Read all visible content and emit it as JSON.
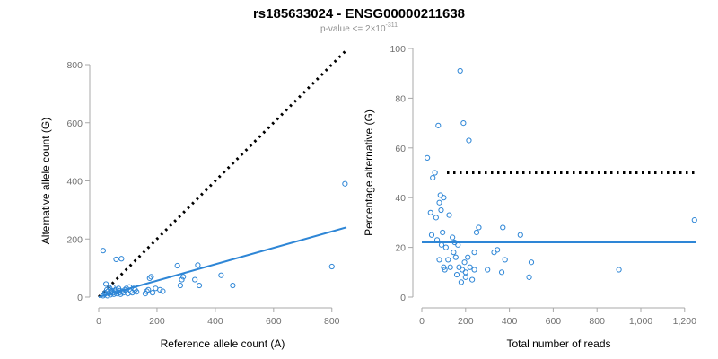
{
  "title": "rs185633024 - ENSG00000211638",
  "subtitle": {
    "base": "p-value <= 2×10",
    "exponent": "-311"
  },
  "colors": {
    "points": "#2e86d6",
    "fit_line": "#2e86d6",
    "reference_line": "#000000",
    "axis": "#a8a8a8",
    "tick_text": "#707070"
  },
  "chart_data": [
    {
      "type": "scatter",
      "xlabel": "Reference allele count (A)",
      "ylabel": "Alternative allele count (G)",
      "xlim": [
        0,
        850
      ],
      "ylim": [
        0,
        800
      ],
      "xticks": [
        0,
        200,
        400,
        600,
        800
      ],
      "yticks": [
        0,
        200,
        400,
        600,
        800
      ],
      "xtick_labels": [
        "0",
        "200",
        "400",
        "600",
        "800"
      ],
      "ytick_labels": [
        "0",
        "200",
        "400",
        "600",
        "800"
      ],
      "reference_line": {
        "style": "dotted",
        "from": [
          0,
          0
        ],
        "to": [
          850,
          850
        ]
      },
      "fit_line": {
        "style": "solid",
        "from": [
          0,
          0
        ],
        "to": [
          850,
          240
        ]
      },
      "points": [
        [
          15,
          160
        ],
        [
          15,
          5
        ],
        [
          20,
          10
        ],
        [
          22,
          15
        ],
        [
          25,
          45
        ],
        [
          28,
          25
        ],
        [
          30,
          5
        ],
        [
          32,
          20
        ],
        [
          35,
          12
        ],
        [
          38,
          30
        ],
        [
          40,
          8
        ],
        [
          42,
          18
        ],
        [
          45,
          22
        ],
        [
          48,
          35
        ],
        [
          50,
          15
        ],
        [
          52,
          10
        ],
        [
          55,
          20
        ],
        [
          58,
          25
        ],
        [
          60,
          130
        ],
        [
          62,
          12
        ],
        [
          65,
          18
        ],
        [
          68,
          30
        ],
        [
          70,
          15
        ],
        [
          72,
          22
        ],
        [
          75,
          10
        ],
        [
          78,
          132
        ],
        [
          80,
          20
        ],
        [
          85,
          15
        ],
        [
          90,
          25
        ],
        [
          95,
          30
        ],
        [
          100,
          12
        ],
        [
          105,
          35
        ],
        [
          110,
          20
        ],
        [
          115,
          15
        ],
        [
          120,
          30
        ],
        [
          125,
          25
        ],
        [
          130,
          18
        ],
        [
          160,
          12
        ],
        [
          165,
          20
        ],
        [
          170,
          25
        ],
        [
          175,
          65
        ],
        [
          180,
          70
        ],
        [
          185,
          15
        ],
        [
          195,
          30
        ],
        [
          210,
          25
        ],
        [
          220,
          20
        ],
        [
          270,
          108
        ],
        [
          280,
          40
        ],
        [
          285,
          60
        ],
        [
          290,
          70
        ],
        [
          330,
          60
        ],
        [
          340,
          110
        ],
        [
          345,
          40
        ],
        [
          420,
          75
        ],
        [
          460,
          40
        ],
        [
          800,
          105
        ],
        [
          845,
          390
        ]
      ]
    },
    {
      "type": "scatter",
      "xlabel": "Total number of reads",
      "ylabel": "Percentage alternative (G)",
      "xlim": [
        0,
        1250
      ],
      "ylim": [
        0,
        100
      ],
      "xticks": [
        0,
        200,
        400,
        600,
        800,
        1000,
        1200
      ],
      "yticks": [
        0,
        20,
        40,
        60,
        80,
        100
      ],
      "xtick_labels": [
        "0",
        "200",
        "400",
        "600",
        "800",
        "1,000",
        "1,200"
      ],
      "ytick_labels": [
        "0",
        "20",
        "40",
        "60",
        "80",
        "100"
      ],
      "reference_line": {
        "style": "dotted",
        "y": 50
      },
      "fit_line": {
        "style": "solid",
        "y": 22
      },
      "points": [
        [
          25,
          56
        ],
        [
          40,
          34
        ],
        [
          45,
          25
        ],
        [
          50,
          48
        ],
        [
          60,
          50
        ],
        [
          65,
          32
        ],
        [
          70,
          23
        ],
        [
          75,
          69
        ],
        [
          80,
          38
        ],
        [
          85,
          41
        ],
        [
          88,
          35
        ],
        [
          90,
          21
        ],
        [
          95,
          26
        ],
        [
          100,
          40
        ],
        [
          105,
          11
        ],
        [
          110,
          20
        ],
        [
          120,
          15
        ],
        [
          125,
          33
        ],
        [
          130,
          12
        ],
        [
          140,
          24
        ],
        [
          145,
          18
        ],
        [
          150,
          22
        ],
        [
          155,
          16
        ],
        [
          160,
          9
        ],
        [
          165,
          21
        ],
        [
          170,
          12
        ],
        [
          175,
          91
        ],
        [
          180,
          6
        ],
        [
          185,
          11
        ],
        [
          190,
          70
        ],
        [
          195,
          14
        ],
        [
          200,
          8
        ],
        [
          210,
          16
        ],
        [
          215,
          63
        ],
        [
          220,
          12
        ],
        [
          230,
          7
        ],
        [
          240,
          11
        ],
        [
          250,
          26
        ],
        [
          260,
          28
        ],
        [
          300,
          11
        ],
        [
          330,
          18
        ],
        [
          345,
          19
        ],
        [
          365,
          10
        ],
        [
          370,
          28
        ],
        [
          380,
          15
        ],
        [
          450,
          25
        ],
        [
          490,
          8
        ],
        [
          500,
          14
        ],
        [
          900,
          11
        ],
        [
          1245,
          31
        ],
        [
          80,
          15
        ],
        [
          100,
          12
        ],
        [
          200,
          10
        ],
        [
          240,
          18
        ]
      ]
    }
  ]
}
